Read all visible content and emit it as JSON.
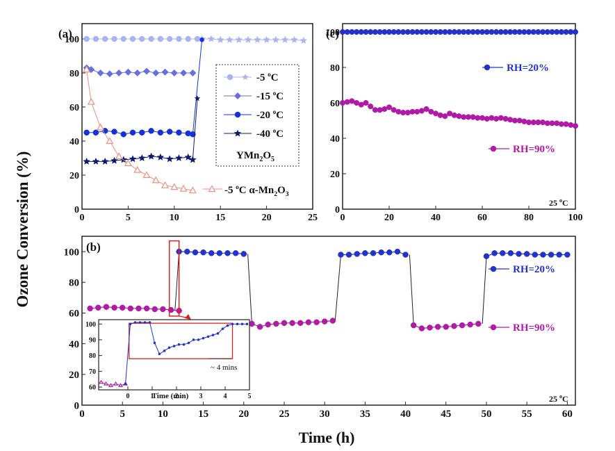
{
  "figure": {
    "shared_ylabel": "Ozone Conversion (%)"
  },
  "chart_data": [
    {
      "id": "a",
      "panel_label": "(a)",
      "type": "line",
      "xlabel": "",
      "ylabel": "Ozone Conversion (%)",
      "xlim": [
        0,
        25
      ],
      "ylim": [
        0,
        100
      ],
      "xticks": [
        0,
        5,
        10,
        15,
        20,
        25
      ],
      "yticks": [
        0,
        20,
        40,
        60,
        80,
        100
      ],
      "legend_location": "right",
      "legend_note": "YMn2O5",
      "legend_note_main": "YMn",
      "legend_note_sub1": "2",
      "legend_note_mid": "O",
      "legend_note_sub2": "5",
      "series": [
        {
          "name": "-5 °C",
          "label_main": "-5 ",
          "label_sup": "o",
          "label_tail": "C",
          "color": "#aab4f0",
          "marker": "circle",
          "x": [
            0.5,
            1.5,
            2.5,
            3.5,
            4.5,
            5.5,
            6.5,
            7.5,
            8.5,
            9.5,
            10.5,
            11.5,
            12.5
          ],
          "y": [
            100,
            100,
            100,
            100,
            100,
            100,
            100,
            100,
            100,
            100,
            100,
            100,
            100
          ]
        },
        {
          "name": "-5 °C (continued)",
          "color": "#aab4f0",
          "marker": "star",
          "x": [
            13,
            14,
            15,
            16,
            17,
            18,
            19,
            20,
            21,
            22,
            23,
            24
          ],
          "y": [
            100,
            100,
            99.5,
            99.5,
            99.5,
            99.5,
            99.5,
            99.5,
            99.5,
            99.5,
            99.5,
            99
          ]
        },
        {
          "name": "-15 °C",
          "label_main": "-15 ",
          "label_sup": "o",
          "label_tail": "C",
          "color": "#6670dd",
          "marker": "diamond",
          "x": [
            0.5,
            1,
            2,
            3,
            4,
            5,
            6,
            7,
            8,
            9,
            10,
            11,
            12
          ],
          "y": [
            83,
            82,
            80,
            79.5,
            80,
            80.5,
            80,
            81,
            80,
            80.5,
            80,
            80,
            80
          ]
        },
        {
          "name": "-20 °C",
          "label_main": "-20 ",
          "label_sup": "o",
          "label_tail": "C",
          "color": "#1432d8",
          "marker": "circle",
          "x": [
            0.5,
            1.5,
            2.5,
            3.5,
            4.5,
            5.5,
            6.5,
            7.5,
            8.5,
            9.5,
            10.5,
            11.5,
            12
          ],
          "y": [
            45,
            45,
            46,
            45.5,
            44,
            45,
            45,
            46,
            45,
            45.5,
            45,
            44.5,
            44
          ],
          "jump_to": [
            13,
            99.5
          ]
        },
        {
          "name": "-40 °C",
          "label_main": "-40 ",
          "label_sup": "o",
          "label_tail": "C",
          "color": "#0a1a70",
          "marker": "star",
          "x": [
            0.5,
            1.5,
            2.5,
            3.5,
            4.5,
            5.5,
            6.5,
            7.5,
            8.5,
            9.5,
            10.5,
            11.5,
            12
          ],
          "y": [
            28,
            28,
            28,
            28.5,
            29,
            29.5,
            30,
            31,
            30.5,
            29.5,
            30,
            30.5,
            29
          ],
          "jump_to": [
            12.5,
            65
          ]
        },
        {
          "name": "-5 °C α-Mn2O3",
          "label_main": "-5 ",
          "label_sup": "o",
          "label_tail": "C α-Mn",
          "label_sub1": "2",
          "label_mid": "O",
          "label_sub2": "3",
          "color": "#f08e80",
          "marker": "triangle-open",
          "x": [
            0.5,
            1,
            2,
            3,
            4,
            5,
            6,
            7,
            8,
            9,
            10,
            11,
            12
          ],
          "y": [
            82,
            63,
            48,
            40,
            31,
            27,
            23,
            20,
            17,
            14,
            13,
            12,
            11
          ]
        }
      ]
    },
    {
      "id": "c",
      "panel_label": "(c)",
      "type": "line",
      "xlabel": "",
      "ylabel": "Ozone Conversion (%)",
      "xlim": [
        0,
        100
      ],
      "ylim": [
        0,
        100
      ],
      "xticks": [
        0,
        20,
        40,
        60,
        80,
        100
      ],
      "yticks": [
        0,
        20,
        40,
        60,
        80,
        100
      ],
      "annotation": "25 °C",
      "annotation_main": "25 ",
      "annotation_sup": "o",
      "annotation_tail": "C",
      "series": [
        {
          "name": "RH=20%",
          "color": "#2233cc",
          "marker": "circle",
          "x": [
            0,
            2,
            4,
            6,
            8,
            10,
            12,
            14,
            16,
            18,
            20,
            22,
            24,
            26,
            28,
            30,
            32,
            34,
            36,
            38,
            40,
            42,
            44,
            46,
            48,
            50,
            52,
            54,
            56,
            58,
            60,
            62,
            64,
            66,
            68,
            70,
            72,
            74,
            76,
            78,
            80,
            82,
            84,
            86,
            88,
            90,
            92,
            94,
            96,
            98,
            100
          ],
          "y": [
            100,
            100,
            100,
            100,
            100,
            100,
            100,
            100,
            100,
            100,
            100,
            100,
            100,
            100,
            100,
            100,
            100,
            100,
            100,
            100,
            100,
            100,
            100,
            100,
            100,
            100,
            100,
            100,
            100,
            100,
            100,
            100,
            100,
            100,
            100,
            100,
            100,
            100,
            100,
            100,
            100,
            100,
            100,
            100,
            100,
            100,
            100,
            100,
            100,
            100,
            100
          ]
        },
        {
          "name": "RH=90%",
          "color": "#b01aa6",
          "marker": "circle",
          "x": [
            0,
            2,
            4,
            6,
            8,
            10,
            12,
            14,
            16,
            18,
            20,
            22,
            24,
            26,
            28,
            30,
            32,
            34,
            36,
            38,
            40,
            42,
            44,
            46,
            48,
            50,
            52,
            54,
            56,
            58,
            60,
            62,
            64,
            66,
            68,
            70,
            72,
            74,
            76,
            78,
            80,
            82,
            84,
            86,
            88,
            90,
            92,
            94,
            96,
            98,
            100
          ],
          "y": [
            60,
            60.5,
            61,
            60,
            59,
            60,
            58,
            56,
            56,
            56.5,
            57.5,
            56,
            55,
            54.5,
            54.5,
            55,
            55,
            55.5,
            56.5,
            55,
            54,
            53,
            52.5,
            54,
            53,
            52.5,
            52,
            52,
            52,
            51.5,
            51.5,
            51,
            51.5,
            51,
            51.5,
            51,
            50.5,
            50,
            50,
            49.5,
            49,
            49,
            49,
            49,
            48.5,
            48.5,
            48.5,
            48,
            48,
            47.5,
            47
          ]
        }
      ]
    },
    {
      "id": "b",
      "panel_label": "(b)",
      "type": "line",
      "xlabel": "Time (h)",
      "ylabel": "Ozone Conversion (%)",
      "xlim": [
        0,
        61
      ],
      "ylim": [
        0,
        110
      ],
      "xticks": [
        0,
        5,
        10,
        15,
        20,
        25,
        30,
        35,
        40,
        45,
        50,
        55,
        60
      ],
      "yticks": [
        0,
        20,
        40,
        60,
        80,
        100
      ],
      "annotation": "25 °C",
      "annotation_main": "25 ",
      "annotation_sup": "o",
      "annotation_tail": "C",
      "series": [
        {
          "name": "RH=20%",
          "color": "#2233cc",
          "marker": "circle",
          "segments": [
            {
              "x": [
                12,
                13,
                14,
                15,
                16,
                17,
                18,
                19,
                20
              ],
              "y": [
                100,
                100,
                99.5,
                99.5,
                99,
                99,
                99,
                99,
                98.5
              ]
            },
            {
              "x": [
                32,
                33,
                34,
                35,
                36,
                37,
                38,
                39,
                40
              ],
              "y": [
                98,
                98,
                98.5,
                99,
                99,
                99.5,
                99.5,
                100,
                98
              ]
            },
            {
              "x": [
                50,
                51,
                52,
                53,
                54,
                55,
                56,
                57,
                58,
                59,
                60
              ],
              "y": [
                97,
                99,
                99,
                99,
                98.5,
                98.5,
                98,
                98,
                98,
                98,
                98
              ]
            }
          ]
        },
        {
          "name": "RH=90%",
          "color": "#b01aa6",
          "marker": "circle",
          "segments": [
            {
              "x": [
                1,
                2,
                3,
                4,
                5,
                6,
                7,
                8,
                9,
                10,
                11,
                12
              ],
              "y": [
                63,
                63.5,
                64,
                63.5,
                63.5,
                63,
                63,
                63,
                62.5,
                62.5,
                62,
                61.5
              ]
            },
            {
              "x": [
                21,
                22,
                23,
                24,
                25,
                26,
                27,
                28,
                29,
                30,
                31
              ],
              "y": [
                53,
                51,
                52.5,
                53,
                53.5,
                53.5,
                53.5,
                54,
                54,
                54.5,
                55
              ]
            },
            {
              "x": [
                41,
                42,
                43,
                44,
                45,
                46,
                47,
                48,
                49
              ],
              "y": [
                52,
                50,
                50.5,
                51,
                51,
                51.5,
                52,
                52.5,
                53
              ]
            }
          ]
        }
      ],
      "transitions": [
        {
          "x": [
            11.5,
            12
          ],
          "y": [
            62,
            100
          ]
        },
        {
          "x": [
            20.5,
            21
          ],
          "y": [
            98.5,
            53
          ]
        },
        {
          "x": [
            31.3,
            32
          ],
          "y": [
            55,
            98
          ]
        },
        {
          "x": [
            40.5,
            41
          ],
          "y": [
            98,
            52
          ]
        },
        {
          "x": [
            49.5,
            50
          ],
          "y": [
            53,
            97
          ]
        }
      ],
      "inset": {
        "type": "line",
        "xlabel": "Time (min)",
        "xlim": [
          -1.2,
          5
        ],
        "ylim": [
          60,
          101
        ],
        "xticks": [
          0,
          1,
          2,
          3,
          4,
          5
        ],
        "yticks": [
          60,
          70,
          80,
          90,
          100
        ],
        "annotation": "~ 4 mins",
        "x": [
          -1.1,
          -0.9,
          -0.7,
          -0.5,
          -0.3,
          -0.1,
          0.1,
          0.3,
          0.5,
          0.7,
          0.9,
          1.1,
          1.3,
          1.5,
          1.7,
          1.9,
          2.1,
          2.3,
          2.5,
          2.7,
          2.9,
          3.1,
          3.3,
          3.5,
          3.7,
          3.9,
          4.1,
          4.3,
          4.5,
          4.7,
          4.9
        ],
        "y": [
          63,
          62,
          61,
          62,
          61,
          62,
          100,
          101,
          101,
          101,
          101,
          88,
          81,
          83,
          85,
          86,
          87,
          87,
          88,
          90,
          90,
          91,
          92,
          93,
          94,
          97,
          99,
          100,
          100,
          100,
          100
        ],
        "color": "#2233cc"
      }
    }
  ]
}
